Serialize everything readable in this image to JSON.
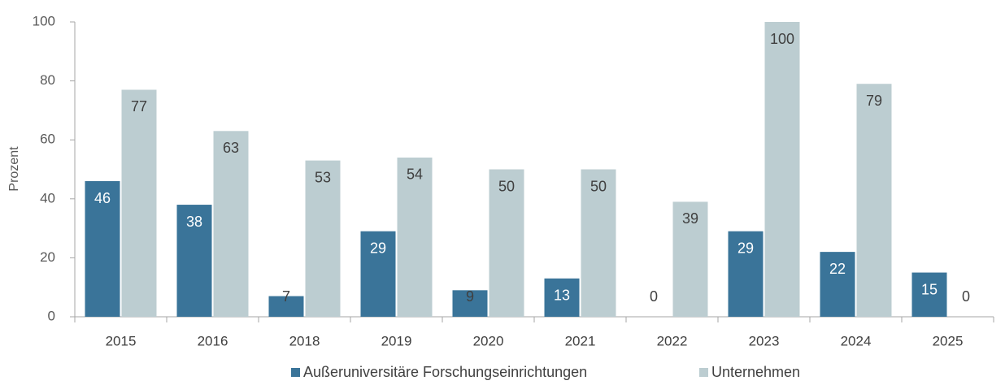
{
  "chart_data": {
    "type": "bar",
    "categories": [
      "2015",
      "2016",
      "2018",
      "2019",
      "2020",
      "2021",
      "2022",
      "2023",
      "2024",
      "2025"
    ],
    "series": [
      {
        "name": "Außeruniversitäre Forschungseinrichtungen",
        "color": "#3a7499",
        "values": [
          46,
          38,
          7,
          29,
          9,
          13,
          0,
          29,
          22,
          15
        ]
      },
      {
        "name": "Unternehmen",
        "color": "#bccdd1",
        "values": [
          77,
          63,
          53,
          54,
          50,
          50,
          39,
          100,
          79,
          0
        ]
      }
    ],
    "ylabel": "Prozent",
    "ylim": [
      0,
      100
    ],
    "yticks": [
      0,
      20,
      40,
      60,
      80,
      100
    ],
    "legend": "bottom"
  }
}
